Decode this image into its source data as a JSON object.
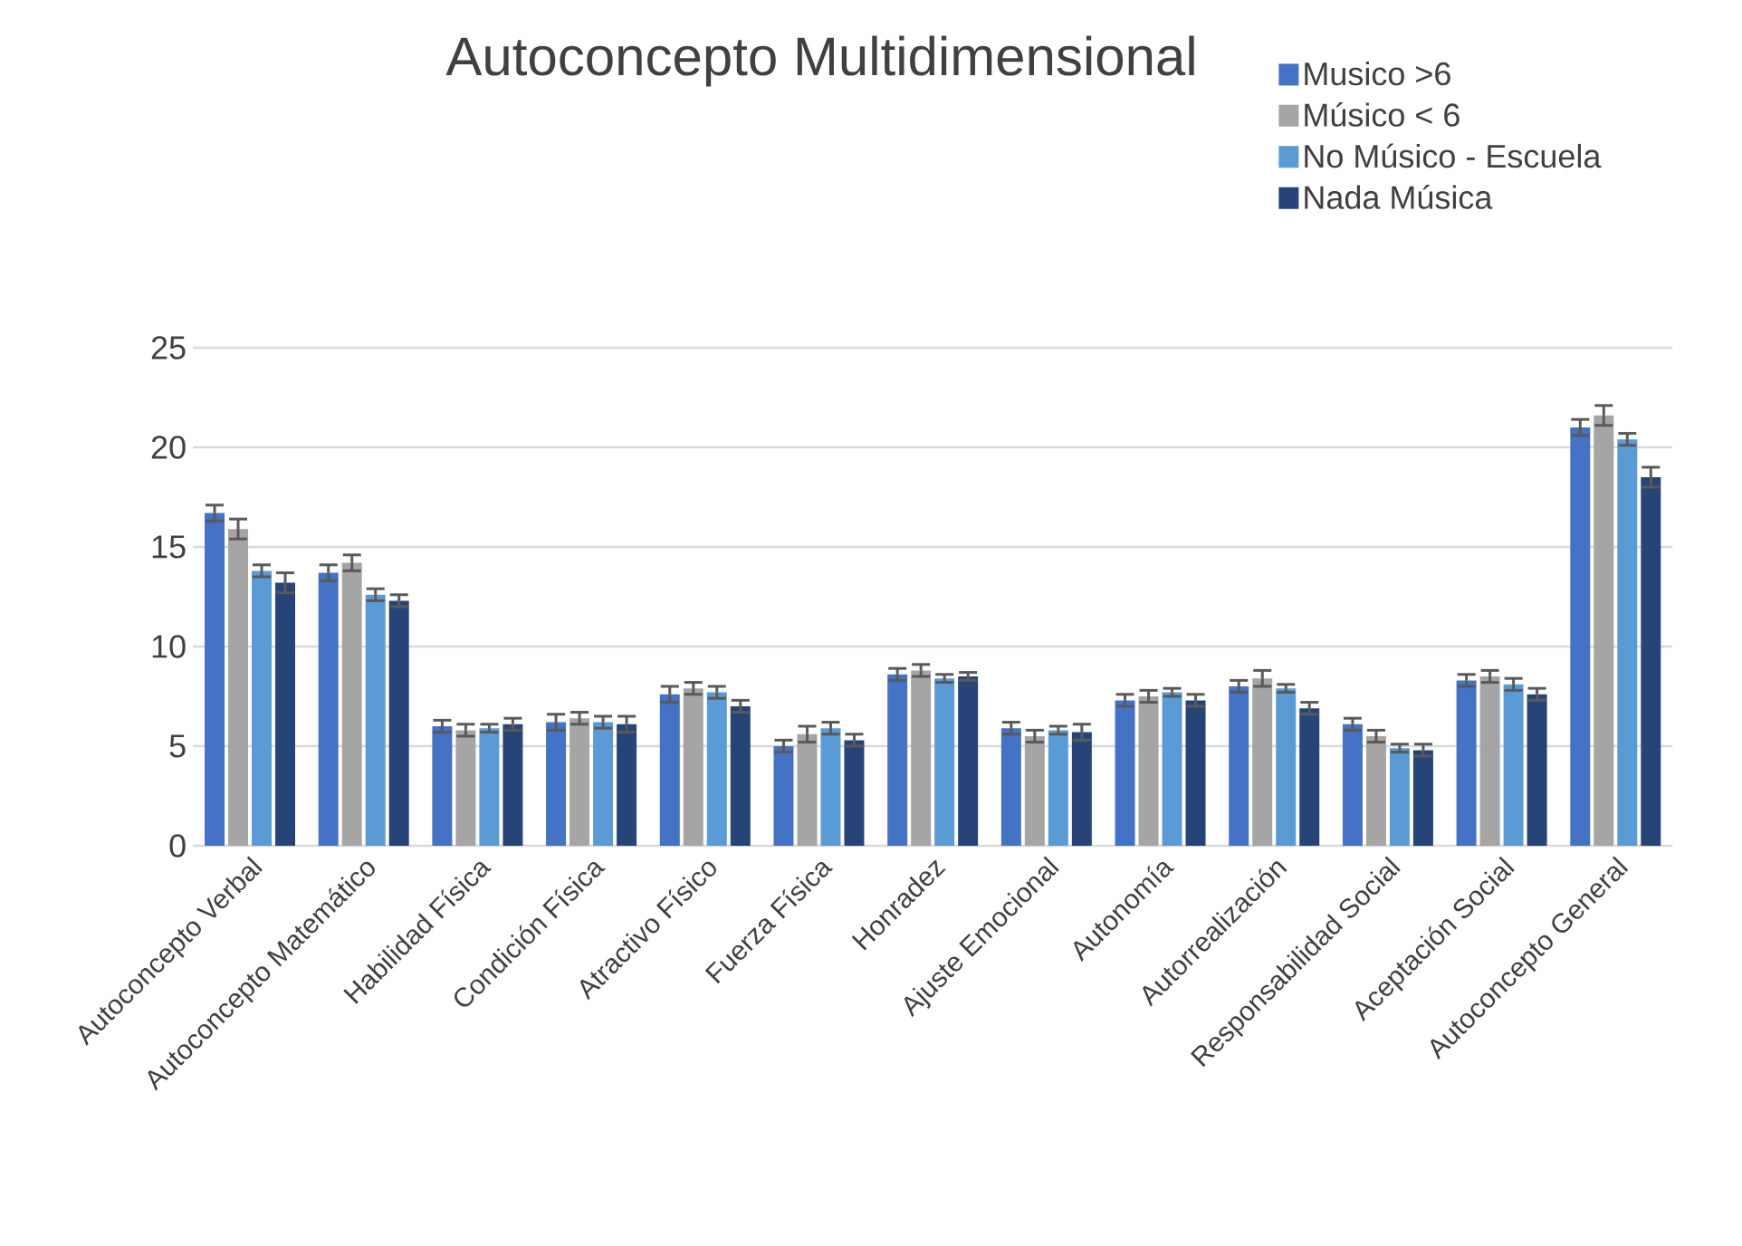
{
  "chart_data": {
    "type": "bar",
    "title": "Autoconcepto Multidimensional",
    "categories": [
      "Autoconcepto Verbal",
      "Autoconcepto Matemático",
      "Habilidad Física",
      "Condición Física",
      "Atractivo Físico",
      "Fuerza Física",
      "Honradez",
      "Ajuste Emocional",
      "Autonomía",
      "Autorrealización",
      "Responsabilidad Social",
      "Aceptación Social",
      "Autoconcepto General"
    ],
    "series": [
      {
        "name": "Musico >6",
        "color": "#4472c4",
        "values": [
          16.7,
          13.7,
          6.0,
          6.2,
          7.6,
          5.0,
          8.6,
          5.9,
          7.3,
          8.0,
          6.1,
          8.3,
          21.0
        ],
        "errors": [
          0.4,
          0.4,
          0.3,
          0.4,
          0.4,
          0.3,
          0.3,
          0.3,
          0.3,
          0.3,
          0.3,
          0.3,
          0.4
        ]
      },
      {
        "name": "Músico < 6",
        "color": "#a5a5a5",
        "values": [
          15.9,
          14.2,
          5.8,
          6.4,
          7.9,
          5.6,
          8.8,
          5.5,
          7.5,
          8.4,
          5.5,
          8.5,
          21.6
        ],
        "errors": [
          0.5,
          0.4,
          0.3,
          0.3,
          0.3,
          0.4,
          0.3,
          0.3,
          0.3,
          0.4,
          0.3,
          0.3,
          0.5
        ]
      },
      {
        "name": "No Músico - Escuela",
        "color": "#5b9bd5",
        "values": [
          13.8,
          12.6,
          5.9,
          6.2,
          7.7,
          5.9,
          8.4,
          5.8,
          7.7,
          7.9,
          4.9,
          8.1,
          20.4
        ],
        "errors": [
          0.3,
          0.3,
          0.2,
          0.3,
          0.3,
          0.3,
          0.2,
          0.2,
          0.2,
          0.2,
          0.2,
          0.3,
          0.3
        ]
      },
      {
        "name": "Nada Música",
        "color": "#264478",
        "values": [
          13.2,
          12.3,
          6.1,
          6.1,
          7.0,
          5.3,
          8.5,
          5.7,
          7.3,
          6.9,
          4.8,
          7.6,
          18.5
        ],
        "errors": [
          0.5,
          0.3,
          0.3,
          0.4,
          0.3,
          0.3,
          0.2,
          0.4,
          0.3,
          0.3,
          0.3,
          0.3,
          0.5
        ]
      }
    ],
    "ylim": [
      0,
      25
    ],
    "yticks": [
      0,
      5,
      10,
      15,
      20,
      25
    ],
    "grid": "y",
    "legend": "top right"
  }
}
